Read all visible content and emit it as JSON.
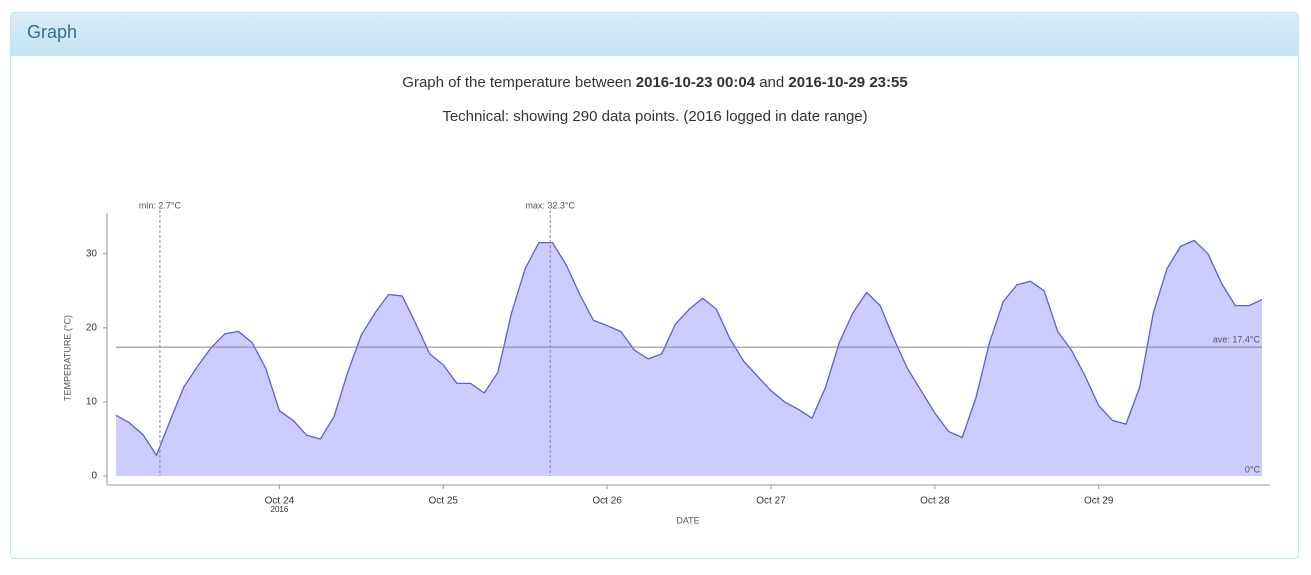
{
  "panel": {
    "title": "Graph"
  },
  "chart_data": {
    "type": "area",
    "title_parts": [
      "Graph of the temperature between",
      "2016-10-23 00:04",
      "and",
      "2016-10-29 23:55"
    ],
    "subtitle": "Technical: showing 290 data points. (2016 logged in date range)",
    "x_label": "DATE",
    "y_label": "TEMPERATURE (°C)",
    "color": "#5c5ce0",
    "fill": "#ccccff",
    "x": [
      "2016-10-23 00:04",
      "2016-10-23 02:00",
      "2016-10-23 04:00",
      "2016-10-23 06:00",
      "2016-10-23 08:00",
      "2016-10-23 10:00",
      "2016-10-23 12:00",
      "2016-10-23 14:00",
      "2016-10-23 16:00",
      "2016-10-23 18:00",
      "2016-10-23 20:00",
      "2016-10-23 22:00",
      "2016-10-24 00:00",
      "2016-10-24 02:00",
      "2016-10-24 04:00",
      "2016-10-24 06:00",
      "2016-10-24 08:00",
      "2016-10-24 10:00",
      "2016-10-24 12:00",
      "2016-10-24 14:00",
      "2016-10-24 16:00",
      "2016-10-24 18:00",
      "2016-10-24 20:00",
      "2016-10-24 22:00",
      "2016-10-25 00:00",
      "2016-10-25 02:00",
      "2016-10-25 04:00",
      "2016-10-25 06:00",
      "2016-10-25 08:00",
      "2016-10-25 10:00",
      "2016-10-25 12:00",
      "2016-10-25 14:00",
      "2016-10-25 16:00",
      "2016-10-25 18:00",
      "2016-10-25 20:00",
      "2016-10-25 22:00",
      "2016-10-26 00:00",
      "2016-10-26 02:00",
      "2016-10-26 04:00",
      "2016-10-26 06:00",
      "2016-10-26 08:00",
      "2016-10-26 10:00",
      "2016-10-26 12:00",
      "2016-10-26 14:00",
      "2016-10-26 16:00",
      "2016-10-26 18:00",
      "2016-10-26 20:00",
      "2016-10-26 22:00",
      "2016-10-27 00:00",
      "2016-10-27 02:00",
      "2016-10-27 04:00",
      "2016-10-27 06:00",
      "2016-10-27 08:00",
      "2016-10-27 10:00",
      "2016-10-27 12:00",
      "2016-10-27 14:00",
      "2016-10-27 16:00",
      "2016-10-27 18:00",
      "2016-10-27 20:00",
      "2016-10-27 22:00",
      "2016-10-28 00:00",
      "2016-10-28 02:00",
      "2016-10-28 04:00",
      "2016-10-28 06:00",
      "2016-10-28 08:00",
      "2016-10-28 10:00",
      "2016-10-28 12:00",
      "2016-10-28 14:00",
      "2016-10-28 16:00",
      "2016-10-28 18:00",
      "2016-10-28 20:00",
      "2016-10-28 22:00",
      "2016-10-29 00:00",
      "2016-10-29 02:00",
      "2016-10-29 04:00",
      "2016-10-29 06:00",
      "2016-10-29 08:00",
      "2016-10-29 10:00",
      "2016-10-29 12:00",
      "2016-10-29 14:00",
      "2016-10-29 16:00",
      "2016-10-29 18:00",
      "2016-10-29 20:00",
      "2016-10-29 22:00",
      "2016-10-29 23:55"
    ],
    "values": [
      8.2,
      7.2,
      5.6,
      2.8,
      7.5,
      12.0,
      14.8,
      17.3,
      19.2,
      19.5,
      18.0,
      14.5,
      8.8,
      7.5,
      5.5,
      5.0,
      8.0,
      14.0,
      19.0,
      22.0,
      24.5,
      24.3,
      20.5,
      16.5,
      15.0,
      12.5,
      12.5,
      11.2,
      14.0,
      22.0,
      28.0,
      31.5,
      31.5,
      28.5,
      24.5,
      21.0,
      20.3,
      19.5,
      17.0,
      15.8,
      16.5,
      20.5,
      22.5,
      24.0,
      22.5,
      18.5,
      15.5,
      13.5,
      11.5,
      10.0,
      9.0,
      7.8,
      12.0,
      18.0,
      22.0,
      24.8,
      23.0,
      18.5,
      14.5,
      11.5,
      8.5,
      6.0,
      5.2,
      10.5,
      18.0,
      23.5,
      25.8,
      26.3,
      25.0,
      19.5,
      17.0,
      13.5,
      9.5,
      7.5,
      7.0,
      12.0,
      22.0,
      28.0,
      31.0,
      31.8,
      30.0,
      26.0,
      23.0,
      23.0,
      23.8
    ],
    "xlim": [
      "2016-10-23 00:04",
      "2016-10-29 23:55"
    ],
    "xticks": [
      {
        "value": "2016-10-24 00:00",
        "label": "Oct 24"
      },
      {
        "value": "2016-10-25 00:00",
        "label": "Oct 25"
      },
      {
        "value": "2016-10-26 00:00",
        "label": "Oct 26"
      },
      {
        "value": "2016-10-27 00:00",
        "label": "Oct 27"
      },
      {
        "value": "2016-10-28 00:00",
        "label": "Oct 28"
      },
      {
        "value": "2016-10-29 00:00",
        "label": "Oct 29"
      }
    ],
    "x_year_label": "2016",
    "ylim": [
      0,
      35.5
    ],
    "yticks": [
      0,
      10,
      20,
      30
    ],
    "annotations": [
      {
        "kind": "vline",
        "label": "min: 2.7°C",
        "value": 2.7,
        "x": "2016-10-23 06:30"
      },
      {
        "kind": "vline",
        "label": "max: 32.3°C",
        "value": 32.3,
        "x": "2016-10-25 15:40"
      },
      {
        "kind": "hline",
        "label": "ave: 17.4°C",
        "value": 17.4
      },
      {
        "kind": "label",
        "label": "0°C",
        "value": 0
      }
    ]
  }
}
